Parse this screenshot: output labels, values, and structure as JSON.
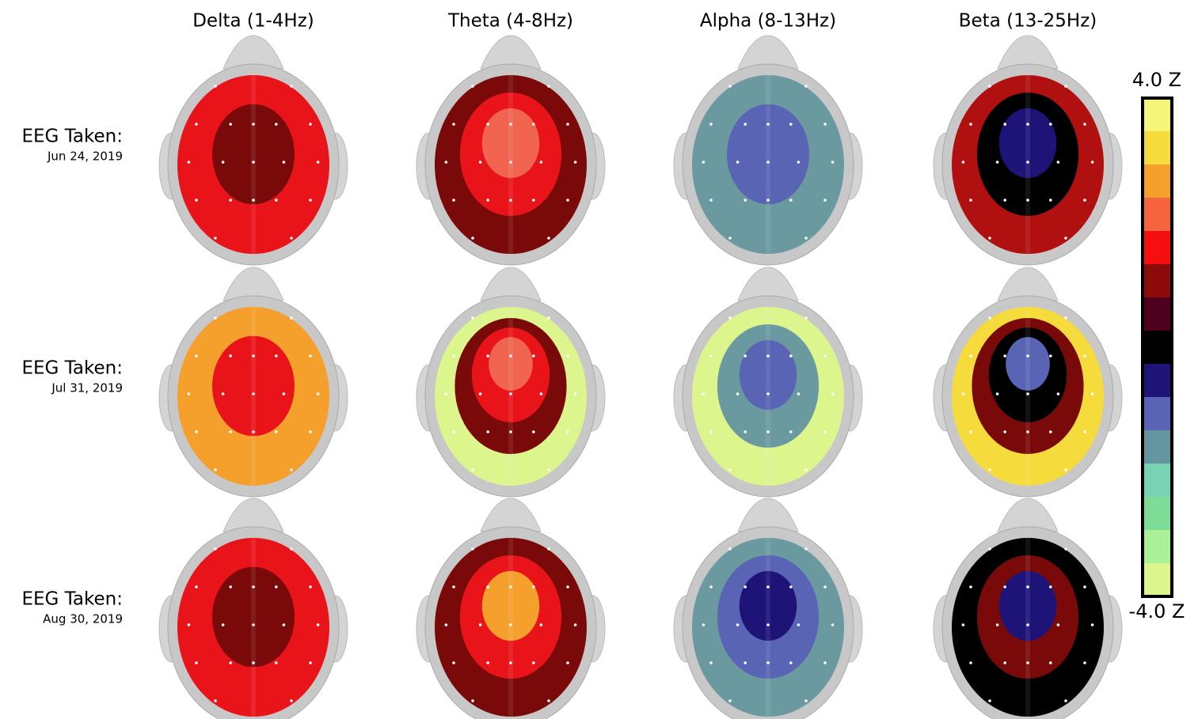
{
  "columns": [
    "Delta (1-4Hz)",
    "Theta (4-8Hz)",
    "Alpha (8-13Hz)",
    "Beta (13-25Hz)"
  ],
  "rows": [
    {
      "label": "EEG Taken:",
      "date": "Jun 24, 2019"
    },
    {
      "label": "EEG Taken:",
      "date": "Jul 31, 2019"
    },
    {
      "label": "EEG Taken:",
      "date": "Aug 30, 2019"
    }
  ],
  "maps": [
    [
      [
        "#e8141a",
        "#7a0a0a"
      ],
      [
        "#7a0a0a",
        "#e8141a",
        "#f06450"
      ],
      [
        "#6a9aa0",
        "#5a64b4"
      ],
      [
        "#b01010",
        "#000000",
        "#1e1478"
      ]
    ],
    [
      [
        "#f5a02d",
        "#e8141a"
      ],
      [
        "#dcf58c",
        "#7a0a0a",
        "#e8141a",
        "#f06450"
      ],
      [
        "#dcf58c",
        "#6a9aa0",
        "#5a64b4"
      ],
      [
        "#f5dc3c",
        "#7a0a0a",
        "#000000",
        "#5a64b4"
      ]
    ],
    [
      [
        "#e8141a",
        "#7a0a0a"
      ],
      [
        "#7a0a0a",
        "#e8141a",
        "#f5a02d"
      ],
      [
        "#6a9aa0",
        "#5a64b4",
        "#1e1478"
      ],
      [
        "#000000",
        "#7a0a0a",
        "#1e1478"
      ]
    ]
  ],
  "colorbar": {
    "max_label": "4.0 Z",
    "min_label": "-4.0 Z",
    "colors": [
      "#f5f57a",
      "#f5dc3c",
      "#f5a02d",
      "#f5643c",
      "#f50f0f",
      "#8c0a0a",
      "#50001e",
      "#000000",
      "#1e1478",
      "#5a64b4",
      "#6496a0",
      "#78d2b4",
      "#7ddc96",
      "#aaf096",
      "#dcf58c"
    ]
  }
}
